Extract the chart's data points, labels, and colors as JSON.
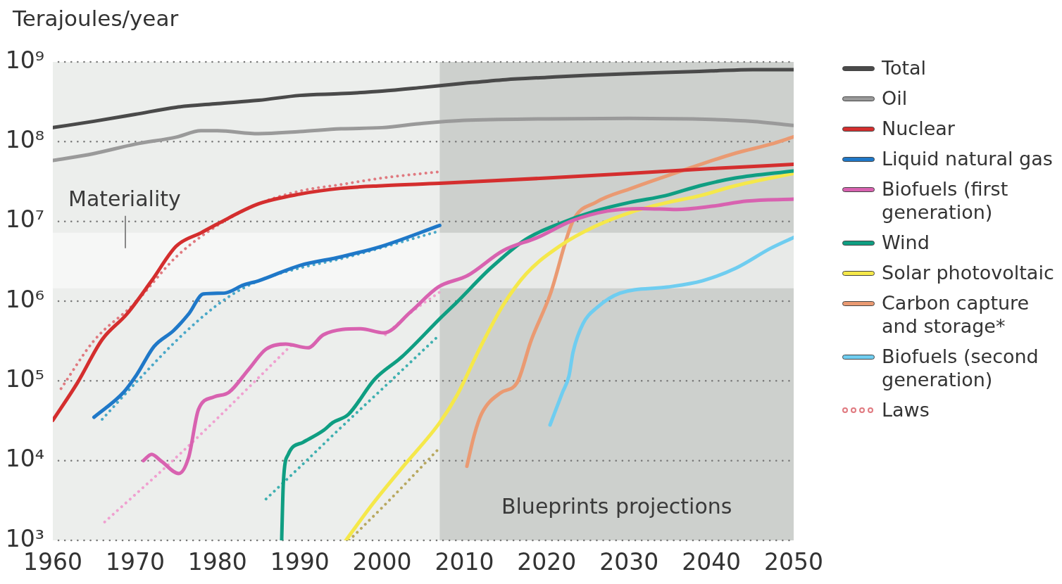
{
  "chart_data": {
    "type": "line",
    "ylabel": "Terajoules/year",
    "log": true,
    "grid": "y",
    "legend": "right",
    "xlim": [
      1960,
      2050
    ],
    "xticks": [
      1960,
      1970,
      1980,
      1990,
      2000,
      2010,
      2020,
      2030,
      2040,
      2050
    ],
    "ylim": [
      1000,
      1000000000
    ],
    "yticks": [
      {
        "value": 1000,
        "label": "10³"
      },
      {
        "value": 10000,
        "label": "10⁴"
      },
      {
        "value": 100000,
        "label": "10⁵"
      },
      {
        "value": 1000000,
        "label": "10⁶"
      },
      {
        "value": 10000000,
        "label": "10⁷"
      },
      {
        "value": 100000000,
        "label": "10⁸"
      },
      {
        "value": 1000000000,
        "label": "10⁹"
      }
    ],
    "bands": [
      {
        "axis": "x",
        "from": 2007,
        "to": 2050,
        "label": "Blueprints projections",
        "color": "#cdd0cd"
      },
      {
        "axis": "y",
        "from": 1450000,
        "to": 7200000,
        "label": "Materiality",
        "color": "#ffffff"
      }
    ],
    "series": [
      {
        "name": "Total",
        "color": "#4a4a4a",
        "x": [
          1960,
          1965,
          1970,
          1975,
          1980,
          1985,
          1990,
          1995,
          2000,
          2005,
          2010,
          2015,
          2020,
          2025,
          2030,
          2035,
          2040,
          2045,
          2050
        ],
        "values": [
          150000000,
          180000000,
          220000000,
          270000000,
          300000000,
          330000000,
          380000000,
          400000000,
          430000000,
          480000000,
          540000000,
          600000000,
          640000000,
          680000000,
          710000000,
          740000000,
          770000000,
          800000000,
          800000000
        ]
      },
      {
        "name": "Oil",
        "color": "#9a9a9a",
        "x": [
          1960,
          1965,
          1970,
          1975,
          1978,
          1980,
          1985,
          1990,
          1995,
          2000,
          2005,
          2010,
          2020,
          2030,
          2040,
          2045,
          2050
        ],
        "values": [
          58000000,
          71000000,
          93000000,
          114000000,
          137000000,
          137000000,
          126000000,
          134000000,
          145000000,
          150000000,
          170000000,
          185000000,
          193000000,
          196000000,
          190000000,
          180000000,
          160000000
        ]
      },
      {
        "name": "Nuclear",
        "color": "#d42e2e",
        "x": [
          1960,
          1963,
          1966,
          1969,
          1972,
          1975,
          1978,
          1980,
          1985,
          1990,
          1995,
          2000,
          2007,
          2020,
          2030,
          2040,
          2050
        ],
        "values": [
          32000,
          95000,
          330000,
          690000,
          1800000,
          4900000,
          7200000,
          9300000,
          16600000,
          22000000,
          26000000,
          28000000,
          30000000,
          35000000,
          40000000,
          46000000,
          52000000
        ]
      },
      {
        "name": "Liquid natural gas",
        "color": "#1f78c8",
        "x": [
          1965,
          1968.6,
          1970.2,
          1972.3,
          1974.7,
          1976.5,
          1978.3,
          1980.8,
          1983.2,
          1985,
          1990,
          1995,
          2000,
          2007
        ],
        "values": [
          35000,
          72000,
          120000,
          270000,
          430000,
          690000,
          1230000,
          1260000,
          1600000,
          1800000,
          2800000,
          3600000,
          4900000,
          8900000
        ]
      },
      {
        "name": "Biofuels (first generation)",
        "color": "#d862b0",
        "x": [
          1971,
          1972,
          1973.2,
          1975.3,
          1976.5,
          1977.7,
          1979.6,
          1981.4,
          1983.8,
          1985.9,
          1988.3,
          1991,
          1992.9,
          1997.4,
          2000.2,
          2003.5,
          2006.8,
          2010.4,
          2014.7,
          2018.9,
          2023.1,
          2027.4,
          2031.6,
          2035.8,
          2040.1,
          2044.3,
          2050
        ],
        "values": [
          10000,
          12000,
          9800,
          6900,
          11000,
          44000,
          63000,
          72000,
          140000,
          250000,
          290000,
          260000,
          380000,
          450000,
          400000,
          740000,
          1500000,
          2100000,
          4300000,
          6300000,
          10200000,
          13500000,
          14500000,
          14100000,
          15500000,
          18000000,
          19000000
        ]
      },
      {
        "name": "Wind",
        "color": "#0f9e82",
        "x": [
          1987.8,
          1988,
          1988.6,
          1990.4,
          1992.9,
          1994,
          1995.9,
          1999.1,
          2002.4,
          2007.2,
          2009,
          2013.2,
          2017.5,
          2021.7,
          2025.9,
          2030.2,
          2034.4,
          2038.6,
          2042.9,
          2050
        ],
        "values": [
          1000,
          5200,
          12000,
          17000,
          24000,
          30000,
          38000,
          105000,
          200000,
          630000,
          950000,
          2600000,
          6000000,
          9500000,
          13500000,
          17400000,
          21000000,
          28000000,
          35000000,
          43000000
        ]
      },
      {
        "name": "Solar photovoltaic",
        "color": "#f5e84a",
        "x": [
          1995.6,
          1998.9,
          2002.5,
          2007,
          2009.1,
          2011.9,
          2014.7,
          2017.5,
          2021.7,
          2025.9,
          2030.2,
          2034.4,
          2038.6,
          2042.9,
          2050
        ],
        "values": [
          1000,
          2900,
          8300,
          30000,
          66000,
          260000,
          890000,
          2200000,
          5000000,
          8700000,
          13000000,
          17000000,
          21000000,
          28000000,
          40000000
        ]
      },
      {
        "name": "Carbon capture and storage*",
        "color": "#ea9a72",
        "x": [
          2010.3,
          2011.2,
          2012.1,
          2014.4,
          2016.4,
          2018.1,
          2020.4,
          2023.2,
          2026,
          2030.3,
          2034.5,
          2038.7,
          2043,
          2047.2,
          2050
        ],
        "values": [
          8500,
          21000,
          39000,
          71000,
          95000,
          320000,
          1200000,
          10200000,
          17400000,
          26000000,
          37000000,
          52000000,
          72000000,
          93000000,
          115000000
        ]
      },
      {
        "name": "Biofuels (second generation)",
        "color": "#6fcdf0",
        "x": [
          2020.4,
          2021.9,
          2022.7,
          2023.2,
          2024.4,
          2026.1,
          2028.9,
          2034.6,
          2038.9,
          2043,
          2047.2,
          2050
        ],
        "values": [
          28000,
          71000,
          115000,
          230000,
          520000,
          830000,
          1260000,
          1500000,
          1800000,
          2600000,
          4600000,
          6300000
        ]
      },
      {
        "name": "Laws",
        "color": "#e07a80",
        "line_style": "dotted",
        "x": [
          1961,
          1965,
          1970,
          1975,
          1980,
          1985,
          1990,
          1995,
          2000,
          2007
        ],
        "values": [
          80000,
          320000,
          950000,
          3600000,
          8900000,
          16600000,
          24000000,
          29000000,
          35000000,
          42000000
        ]
      },
      {
        "color": "#4aa8c8",
        "line_style": "dotted",
        "x": [
          1966,
          1970,
          1976,
          1981,
          1985,
          1990,
          1995,
          2000,
          2007
        ],
        "values": [
          33000,
          93000,
          400000,
          1070000,
          1800000,
          2600000,
          3400000,
          4700000,
          7600000
        ]
      },
      {
        "color": "#f0a0d0",
        "line_style": "dotted",
        "x": [
          1966.3,
          1975,
          1980,
          1985,
          1989.4,
          1995,
          2000.4,
          2003.5,
          2007
        ],
        "values": [
          1700,
          11000,
          34000,
          110000,
          310000,
          null,
          380000,
          720000,
          1300000
        ]
      },
      {
        "color": "#3fb0b0",
        "line_style": "dotted",
        "x": [
          1985.9,
          1990,
          1995,
          2000,
          2007
        ],
        "values": [
          3300,
          8300,
          26000,
          79000,
          380000
        ]
      },
      {
        "color": "#b8a860",
        "line_style": "dotted",
        "x": [
          1996,
          2001.5,
          2007
        ],
        "values": [
          1000,
          3700,
          14500
        ]
      }
    ]
  }
}
